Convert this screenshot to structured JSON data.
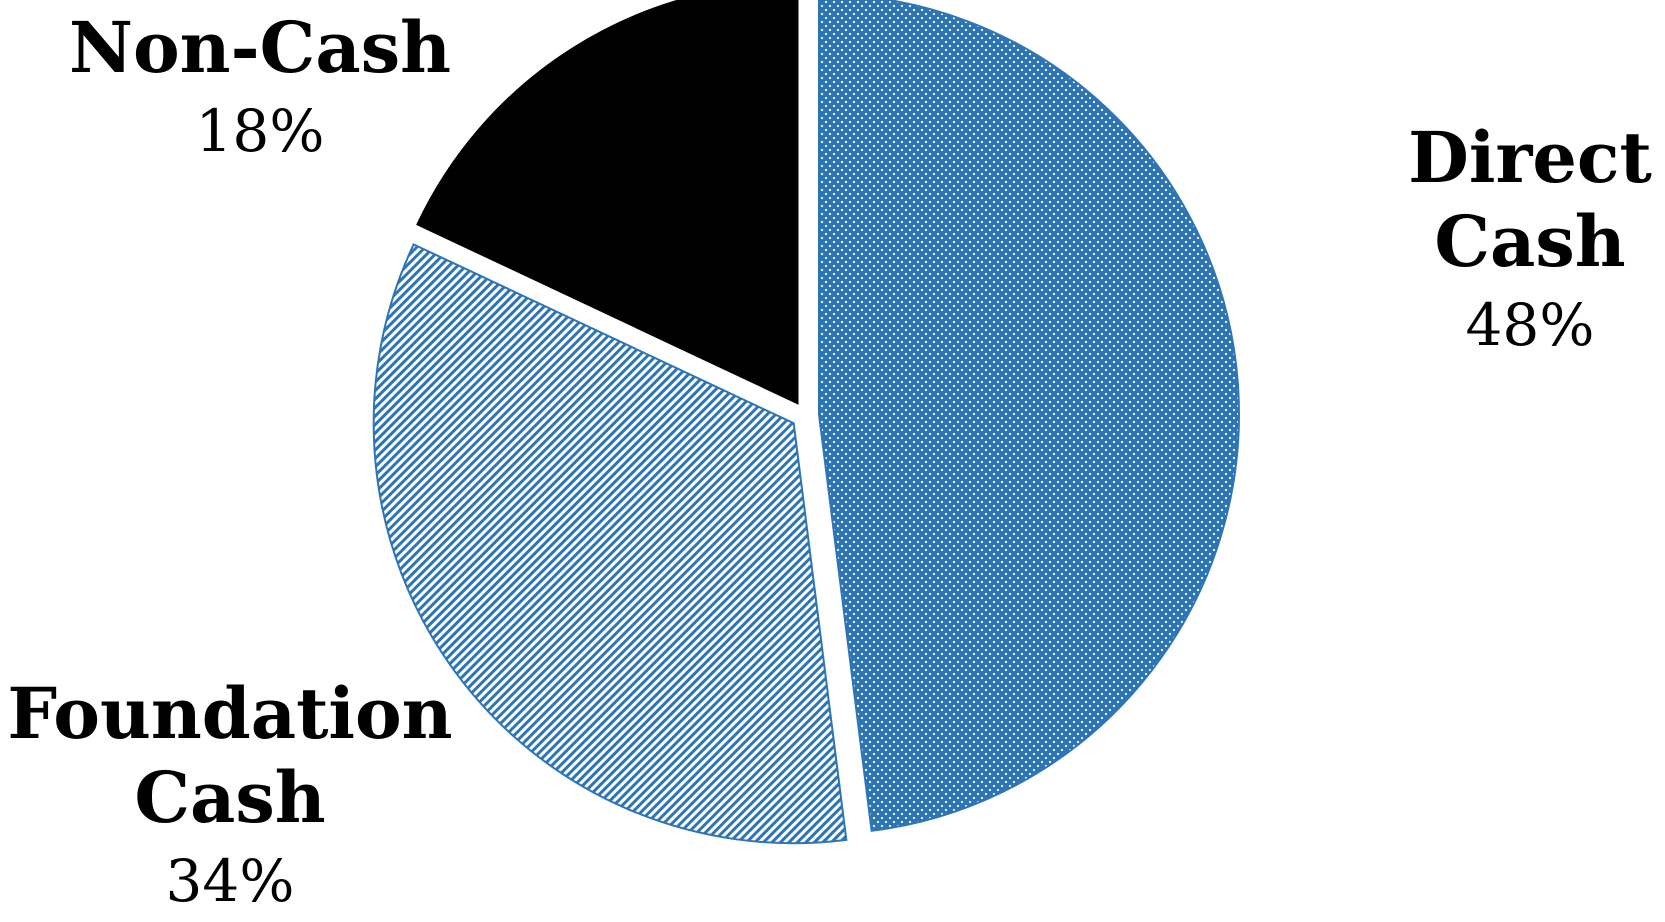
{
  "chart_data": {
    "type": "pie",
    "slices": [
      {
        "name": "Direct Cash",
        "label_lines": [
          "Direct",
          "Cash"
        ],
        "percent_label": "48%",
        "value": 48,
        "color": "#2e75b6",
        "pattern": "dots"
      },
      {
        "name": "Foundation Cash",
        "label_lines": [
          "Foundation",
          "Cash"
        ],
        "percent_label": "34%",
        "value": 34,
        "color": "#2e75b6",
        "pattern": "diagonal-stripes"
      },
      {
        "name": "Non-Cash",
        "label_lines": [
          "Non-Cash"
        ],
        "percent_label": "18%",
        "value": 18,
        "color": "#000000",
        "pattern": "solid"
      }
    ],
    "legend": "none",
    "exploded": true
  }
}
